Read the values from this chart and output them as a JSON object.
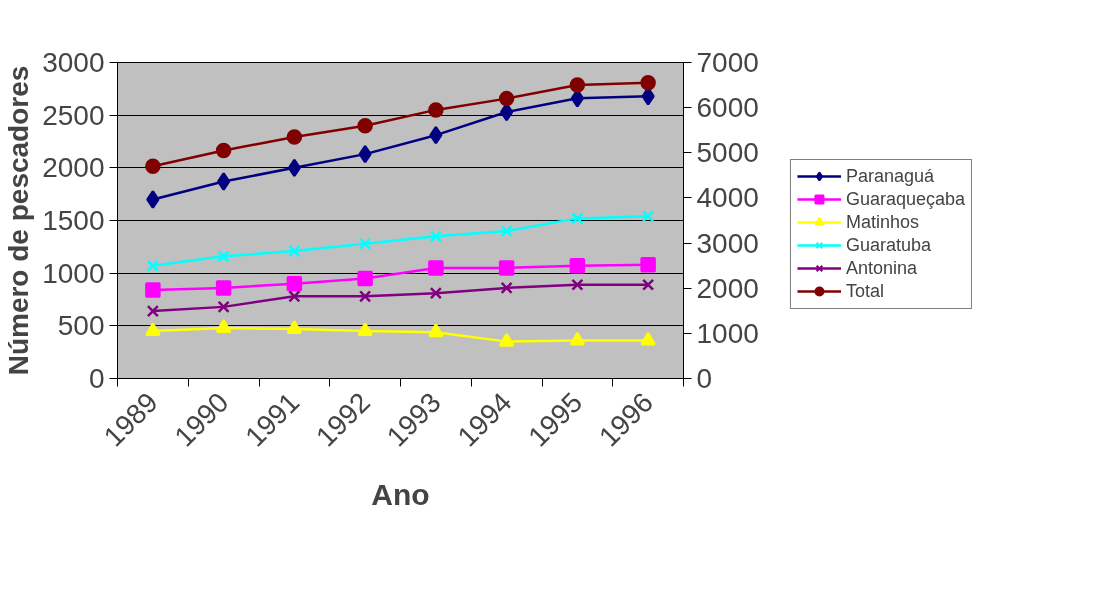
{
  "chart_data": {
    "type": "line",
    "xlabel": "Ano",
    "ylabel": "Número de pescadores",
    "categories": [
      "1989",
      "1990",
      "1991",
      "1992",
      "1993",
      "1994",
      "1995",
      "1996"
    ],
    "ylim": [
      0,
      3000
    ],
    "yticks": [
      0,
      500,
      1000,
      1500,
      2000,
      2500,
      3000
    ],
    "y2lim": [
      0,
      7000
    ],
    "y2ticks": [
      0,
      1000,
      2000,
      3000,
      4000,
      5000,
      6000,
      7000
    ],
    "grid": "y",
    "legend": "right",
    "series": [
      {
        "name": "Paranaguá",
        "color": "#000080",
        "marker": "diamond",
        "values": [
          1700,
          1870,
          2000,
          2130,
          2310,
          2530,
          2660,
          2680
        ]
      },
      {
        "name": "Guaraqueçaba",
        "color": "#ff00ff",
        "marker": "square",
        "values": [
          840,
          860,
          900,
          950,
          1050,
          1050,
          1070,
          1080
        ]
      },
      {
        "name": "Matinhos",
        "color": "#ffff00",
        "marker": "triangle",
        "values": [
          450,
          480,
          470,
          450,
          440,
          350,
          360,
          360
        ]
      },
      {
        "name": "Guaratuba",
        "color": "#00ffff",
        "marker": "cross",
        "values": [
          1070,
          1160,
          1210,
          1280,
          1350,
          1400,
          1520,
          1540
        ]
      },
      {
        "name": "Antonina",
        "color": "#800080",
        "marker": "cross",
        "values": [
          640,
          680,
          780,
          780,
          810,
          860,
          890,
          890
        ]
      },
      {
        "name": "Total",
        "color": "#800000",
        "marker": "circle",
        "axis": "y2",
        "values": [
          4700,
          5050,
          5350,
          5600,
          5950,
          6200,
          6500,
          6550
        ]
      }
    ]
  }
}
